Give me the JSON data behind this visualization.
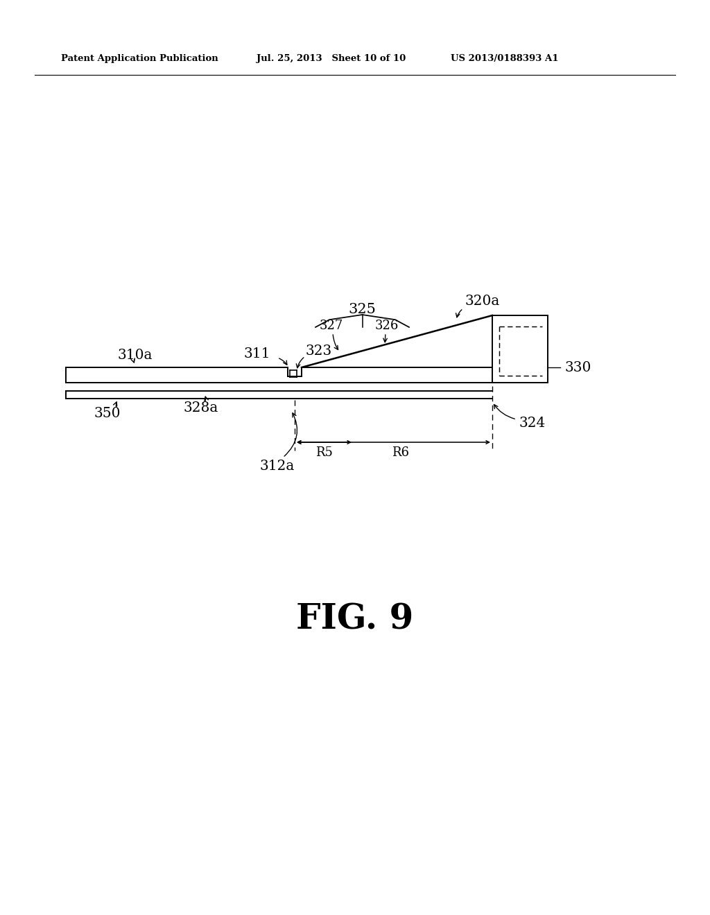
{
  "bg_color": "#ffffff",
  "line_color": "#000000",
  "header_left": "Patent Application Publication",
  "header_mid": "Jul. 25, 2013   Sheet 10 of 10",
  "header_right": "US 2013/0188393 A1",
  "fig_label": "FIG. 9",
  "lw": 1.4
}
